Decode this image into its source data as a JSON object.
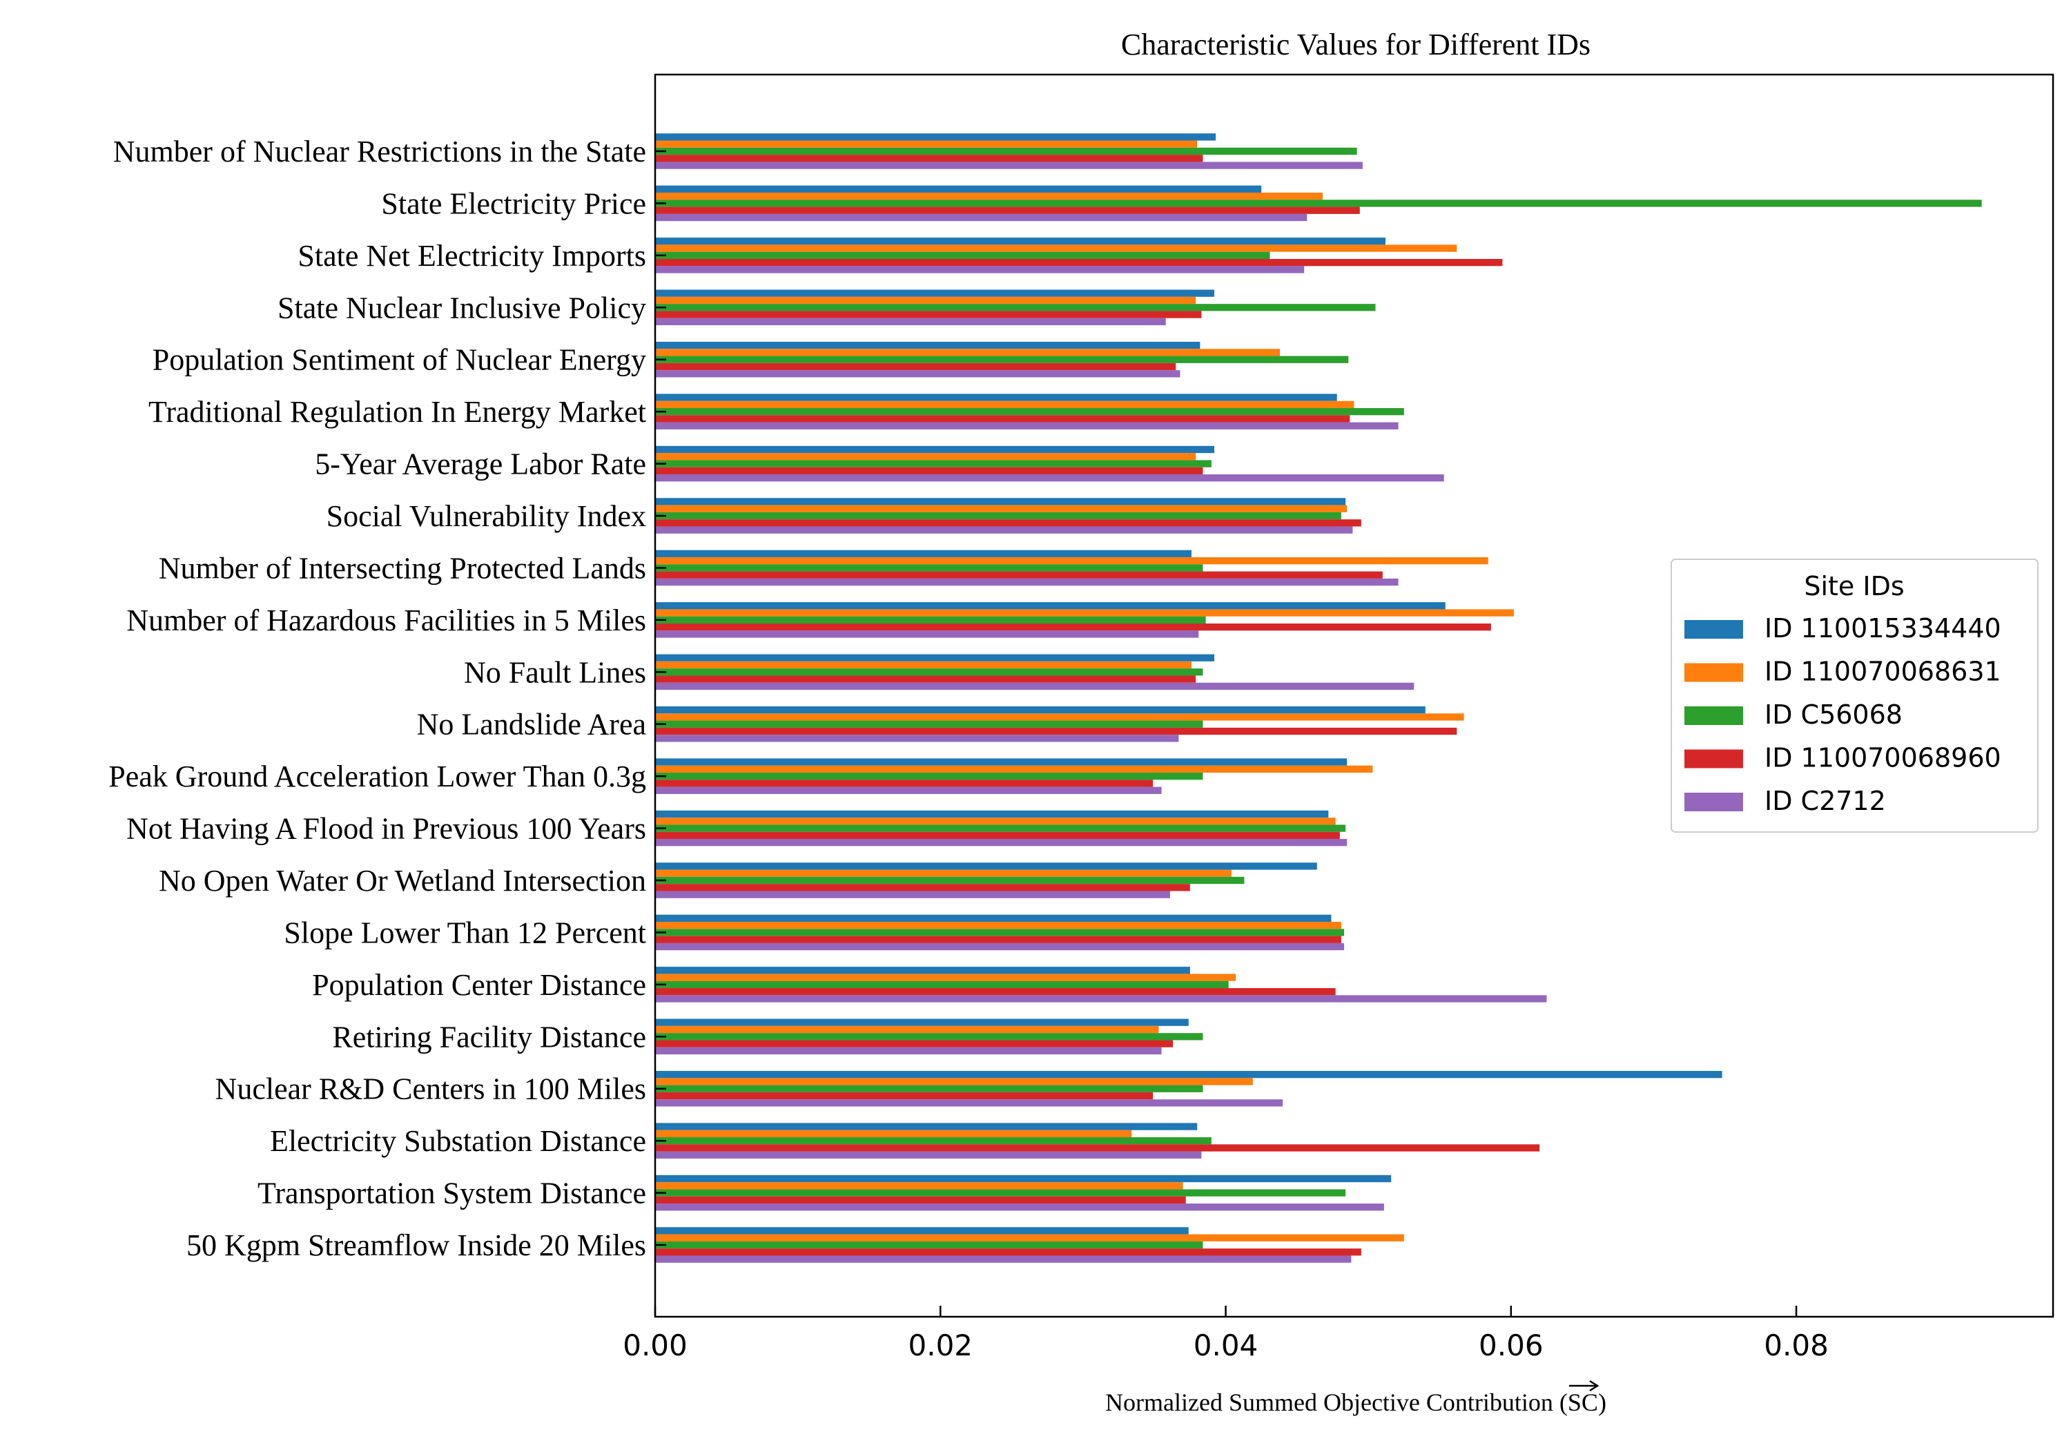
{
  "chart_data": {
    "type": "bar",
    "orientation": "horizontal",
    "title": "Characteristic Values for Different IDs",
    "xlabel_main": "Normalized Summed Objective Contribution (",
    "xlabel_symbol": "SC",
    "xlabel_end": ")",
    "xlim": [
      0,
      0.098
    ],
    "xticks": [
      "0.00",
      "0.02",
      "0.04",
      "0.06",
      "0.08"
    ],
    "xtick_values": [
      0,
      0.02,
      0.04,
      0.06,
      0.08
    ],
    "legend_title": "Site IDs",
    "legend_position": "center-right",
    "categories": [
      "Number of Nuclear Restrictions in the State",
      "State Electricity Price",
      "State Net Electricity Imports",
      "State Nuclear Inclusive Policy",
      "Population Sentiment of Nuclear Energy",
      "Traditional Regulation In Energy Market",
      "5-Year Average Labor Rate",
      "Social Vulnerability Index",
      "Number of Intersecting Protected Lands",
      "Number of Hazardous Facilities in 5 Miles",
      "No Fault Lines",
      "No Landslide Area",
      "Peak Ground Acceleration Lower Than 0.3g",
      "Not Having A Flood in Previous 100 Years",
      "No Open Water Or Wetland Intersection",
      "Slope Lower Than 12 Percent",
      "Population Center Distance",
      "Retiring Facility Distance",
      "Nuclear R&D Centers in 100 Miles",
      "Electricity Substation Distance",
      "Transportation System Distance",
      "50 Kgpm Streamflow Inside 20 Miles"
    ],
    "series": [
      {
        "name": "ID 110015334440",
        "color": "#1f77b4",
        "values": [
          0.0393,
          0.0425,
          0.0512,
          0.0392,
          0.0382,
          0.0478,
          0.0392,
          0.0484,
          0.0376,
          0.0554,
          0.0392,
          0.054,
          0.0485,
          0.0472,
          0.0464,
          0.0474,
          0.0375,
          0.0374,
          0.0748,
          0.038,
          0.0516,
          0.0374
        ]
      },
      {
        "name": "ID 110070068631",
        "color": "#ff7f0e",
        "values": [
          0.038,
          0.0468,
          0.0562,
          0.0379,
          0.0438,
          0.049,
          0.0379,
          0.0485,
          0.0584,
          0.0602,
          0.0376,
          0.0567,
          0.0503,
          0.0477,
          0.0404,
          0.0481,
          0.0407,
          0.0353,
          0.0419,
          0.0334,
          0.037,
          0.0525
        ]
      },
      {
        "name": "ID C56068",
        "color": "#2ca02c",
        "values": [
          0.0492,
          0.093,
          0.0431,
          0.0505,
          0.0486,
          0.0525,
          0.039,
          0.0481,
          0.0384,
          0.0386,
          0.0384,
          0.0384,
          0.0384,
          0.0484,
          0.0413,
          0.0483,
          0.0402,
          0.0384,
          0.0384,
          0.039,
          0.0484,
          0.0384
        ]
      },
      {
        "name": "ID 110070068960",
        "color": "#d62728",
        "values": [
          0.0384,
          0.0494,
          0.0594,
          0.0383,
          0.0365,
          0.0487,
          0.0384,
          0.0495,
          0.051,
          0.0586,
          0.0379,
          0.0562,
          0.0349,
          0.048,
          0.0375,
          0.0481,
          0.0477,
          0.0363,
          0.0349,
          0.062,
          0.0372,
          0.0495
        ]
      },
      {
        "name": "ID C2712",
        "color": "#9467bd",
        "values": [
          0.0496,
          0.0457,
          0.0455,
          0.0358,
          0.0368,
          0.0521,
          0.0553,
          0.0489,
          0.0521,
          0.0381,
          0.0532,
          0.0367,
          0.0355,
          0.0485,
          0.0361,
          0.0483,
          0.0625,
          0.0355,
          0.044,
          0.0383,
          0.0511,
          0.0488
        ]
      }
    ]
  }
}
